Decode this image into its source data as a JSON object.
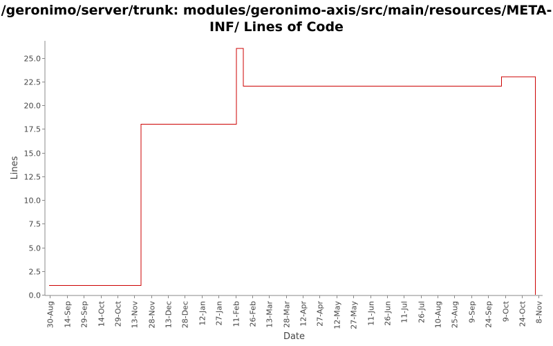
{
  "chart_data": {
    "type": "line",
    "title_lines": [
      "/geronimo/server/trunk: modules/geronimo-axis/src/main/resources/META-",
      "INF/ Lines of Code"
    ],
    "xlabel": "Date",
    "ylabel": "Lines",
    "x_tick_labels": [
      "30-Aug",
      "14-Sep",
      "29-Sep",
      "14-Oct",
      "29-Oct",
      "13-Nov",
      "28-Nov",
      "13-Dec",
      "28-Dec",
      "12-Jan",
      "27-Jan",
      "11-Feb",
      "26-Feb",
      "13-Mar",
      "28-Mar",
      "12-Apr",
      "27-Apr",
      "12-May",
      "27-May",
      "11-Jun",
      "26-Jun",
      "11-Jul",
      "26-Jul",
      "10-Aug",
      "25-Aug",
      "9-Sep",
      "24-Sep",
      "9-Oct",
      "24-Oct",
      "8-Nov"
    ],
    "y_tick_labels": [
      "0.0",
      "2.5",
      "5.0",
      "7.5",
      "10.0",
      "12.5",
      "15.0",
      "17.5",
      "20.0",
      "22.5",
      "25.0"
    ],
    "ylim": [
      0,
      26.8
    ],
    "xlim_days": [
      -4,
      438.5
    ],
    "x_unit": "days after 30-Aug",
    "grid": false,
    "series": [
      {
        "color": "#cc0000",
        "step": true,
        "points": [
          {
            "x": -1,
            "y": 1
          },
          {
            "x": 81,
            "y": 18
          },
          {
            "x": 166,
            "y": 26
          },
          {
            "x": 172,
            "y": 22
          },
          {
            "x": 402,
            "y": 23
          },
          {
            "x": 432,
            "y": 0
          }
        ]
      }
    ]
  }
}
